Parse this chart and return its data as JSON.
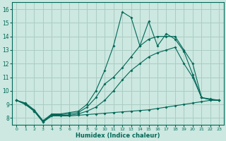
{
  "xlabel": "Humidex (Indice chaleur)",
  "ylabel": "",
  "xlim": [
    -0.5,
    23.5
  ],
  "ylim": [
    7.5,
    16.5
  ],
  "background_color": "#cce8e0",
  "grid_color": "#aaccc4",
  "line_color": "#006858",
  "xticks": [
    0,
    1,
    2,
    3,
    4,
    5,
    6,
    7,
    8,
    9,
    10,
    11,
    12,
    13,
    14,
    15,
    16,
    17,
    18,
    19,
    20,
    21,
    22,
    23
  ],
  "yticks": [
    8,
    9,
    10,
    11,
    12,
    13,
    14,
    15,
    16
  ],
  "series": [
    {
      "x": [
        0,
        1,
        2,
        3,
        4,
        5,
        6,
        7,
        8,
        9,
        10,
        11,
        12,
        13,
        14,
        15,
        16,
        17,
        18,
        19,
        20,
        21,
        22,
        23
      ],
      "y": [
        9.3,
        9.0,
        8.5,
        7.7,
        8.15,
        8.15,
        8.15,
        8.2,
        8.25,
        8.3,
        8.35,
        8.4,
        8.45,
        8.5,
        8.55,
        8.6,
        8.7,
        8.8,
        8.9,
        9.0,
        9.1,
        9.2,
        9.3,
        9.3
      ]
    },
    {
      "x": [
        0,
        1,
        2,
        3,
        4,
        5,
        6,
        7,
        8,
        9,
        10,
        11,
        12,
        13,
        14,
        15,
        16,
        17,
        18,
        19,
        20,
        21,
        22,
        23
      ],
      "y": [
        9.3,
        9.0,
        8.5,
        7.7,
        8.2,
        8.2,
        8.2,
        8.3,
        8.5,
        8.8,
        9.3,
        10.0,
        10.8,
        11.5,
        12.0,
        12.5,
        12.8,
        13.0,
        13.2,
        12.0,
        11.0,
        9.5,
        9.35,
        9.3
      ]
    },
    {
      "x": [
        0,
        1,
        2,
        3,
        4,
        5,
        6,
        7,
        8,
        9,
        10,
        11,
        12,
        13,
        14,
        15,
        16,
        17,
        18,
        19,
        20,
        21,
        22,
        23
      ],
      "y": [
        9.3,
        9.05,
        8.55,
        7.75,
        8.25,
        8.25,
        8.3,
        8.4,
        8.8,
        9.5,
        10.5,
        11.0,
        11.7,
        12.5,
        13.3,
        13.8,
        14.0,
        14.0,
        14.0,
        13.0,
        12.0,
        9.5,
        9.35,
        9.3
      ]
    },
    {
      "x": [
        0,
        1,
        2,
        3,
        4,
        5,
        6,
        7,
        8,
        9,
        10,
        11,
        12,
        13,
        14,
        15,
        16,
        17,
        18,
        19,
        20,
        21,
        22,
        23
      ],
      "y": [
        9.3,
        9.1,
        8.6,
        7.8,
        8.3,
        8.3,
        8.4,
        8.5,
        9.0,
        10.0,
        11.5,
        13.3,
        15.8,
        15.4,
        13.3,
        15.1,
        13.3,
        14.2,
        13.8,
        12.9,
        11.2,
        9.5,
        9.4,
        9.3
      ]
    }
  ]
}
